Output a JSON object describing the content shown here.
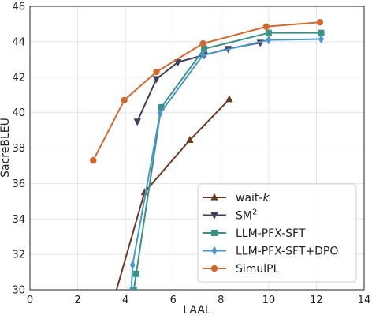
{
  "chart_data": {
    "type": "line",
    "xlabel": "LAAL",
    "ylabel": "SacreBLEU",
    "xlim": [
      0,
      14
    ],
    "ylim": [
      30,
      46
    ],
    "xticks": [
      0,
      2,
      4,
      6,
      8,
      10,
      12,
      14
    ],
    "yticks": [
      30,
      32,
      34,
      36,
      38,
      40,
      42,
      44,
      46
    ],
    "grid": true,
    "legend_position": "lower-right",
    "series": [
      {
        "name": "wait-k",
        "legend_main": "wait-",
        "legend_italic": "k",
        "color": "#6b3a22",
        "marker": "triangle-up",
        "x": [
          3.5,
          4.8,
          6.7,
          8.35
        ],
        "y": [
          29.4,
          35.5,
          38.45,
          40.75
        ]
      },
      {
        "name": "SM2",
        "legend_main": "SM",
        "legend_sup": "2",
        "color": "#3f3f5a",
        "marker": "triangle-down",
        "x": [
          4.5,
          5.3,
          6.2,
          7.3,
          8.3,
          9.65
        ],
        "y": [
          39.5,
          41.9,
          42.85,
          43.25,
          43.6,
          43.95
        ]
      },
      {
        "name": "LLM-PFX-SFT",
        "color": "#3b9386",
        "marker": "square",
        "x": [
          4.35,
          4.45,
          5.5,
          7.3,
          10.0,
          12.2
        ],
        "y": [
          30.0,
          30.9,
          40.3,
          43.6,
          44.5,
          44.5
        ]
      },
      {
        "name": "LLM-PFX-SFT+DPO",
        "color": "#4a97c9",
        "marker": "diamond",
        "x": [
          4.25,
          4.3,
          5.45,
          7.25,
          10.0,
          12.2
        ],
        "y": [
          30.0,
          31.4,
          39.95,
          43.25,
          44.1,
          44.15
        ]
      },
      {
        "name": "SimulPL",
        "color": "#d2692e",
        "marker": "circle",
        "x": [
          2.65,
          3.95,
          5.3,
          7.25,
          9.9,
          12.15
        ],
        "y": [
          37.3,
          40.7,
          42.3,
          43.9,
          44.85,
          45.1
        ]
      }
    ]
  }
}
